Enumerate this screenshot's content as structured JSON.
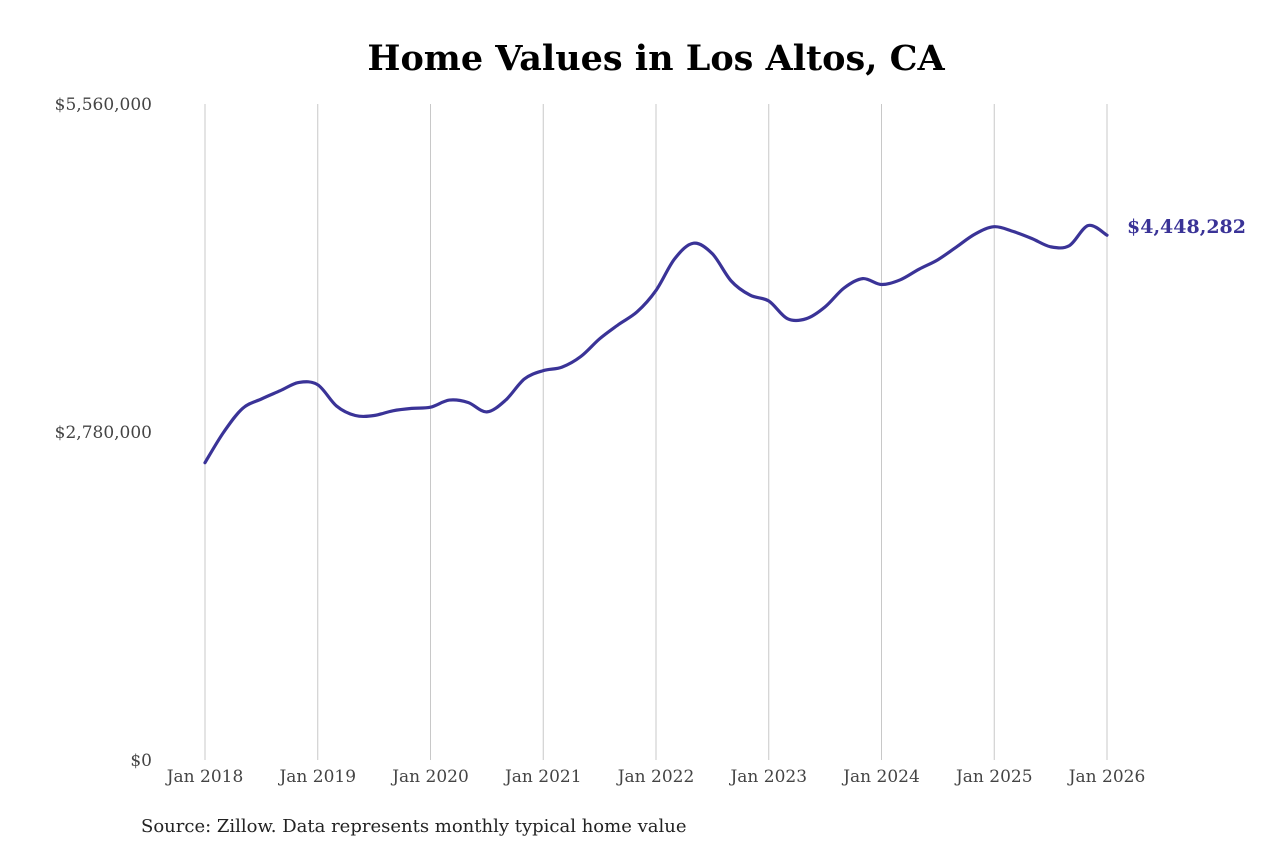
{
  "chart_data": {
    "type": "line",
    "title": "Home Values in Los Altos, CA",
    "xlabel": "",
    "ylabel": "",
    "ylim": [
      0,
      5560000
    ],
    "yticks": [
      0,
      2780000,
      5560000
    ],
    "ytick_labels": [
      "$0",
      "$2,780,000",
      "$5,560,000"
    ],
    "xtick_labels": [
      "Jan 2018",
      "Jan 2019",
      "Jan 2020",
      "Jan 2021",
      "Jan 2022",
      "Jan 2023",
      "Jan 2024",
      "Jan 2025",
      "Jan 2026"
    ],
    "grid": "vertical",
    "series": [
      {
        "color": "#3a3397",
        "x": [
          "2018-01",
          "2018-03",
          "2018-05",
          "2018-07",
          "2018-09",
          "2018-11",
          "2019-01",
          "2019-03",
          "2019-05",
          "2019-07",
          "2019-09",
          "2019-11",
          "2020-01",
          "2020-03",
          "2020-05",
          "2020-07",
          "2020-09",
          "2020-11",
          "2021-01",
          "2021-03",
          "2021-05",
          "2021-07",
          "2021-09",
          "2021-11",
          "2022-01",
          "2022-03",
          "2022-05",
          "2022-07",
          "2022-09",
          "2022-11",
          "2023-01",
          "2023-03",
          "2023-05",
          "2023-07",
          "2023-09",
          "2023-11",
          "2024-01",
          "2024-03",
          "2024-05",
          "2024-07",
          "2024-09",
          "2024-11",
          "2025-01",
          "2025-03",
          "2025-05",
          "2025-07",
          "2025-09",
          "2025-11",
          "2026-01"
        ],
        "values": [
          2520000,
          2780000,
          2980000,
          3060000,
          3130000,
          3200000,
          3180000,
          3000000,
          2920000,
          2920000,
          2960000,
          2980000,
          2990000,
          3050000,
          3030000,
          2950000,
          3050000,
          3230000,
          3300000,
          3330000,
          3420000,
          3570000,
          3690000,
          3800000,
          3980000,
          4250000,
          4380000,
          4290000,
          4060000,
          3940000,
          3890000,
          3740000,
          3740000,
          3840000,
          4000000,
          4080000,
          4030000,
          4070000,
          4160000,
          4240000,
          4350000,
          4460000,
          4520000,
          4480000,
          4420000,
          4350000,
          4360000,
          4530000,
          4448282
        ]
      }
    ],
    "end_label": "$4,448,282"
  },
  "footer": {
    "source": "Source: Zillow. Data represents monthly typical home value"
  },
  "colors": {
    "line": "#3a3397",
    "grid": "#c8c8c8"
  }
}
